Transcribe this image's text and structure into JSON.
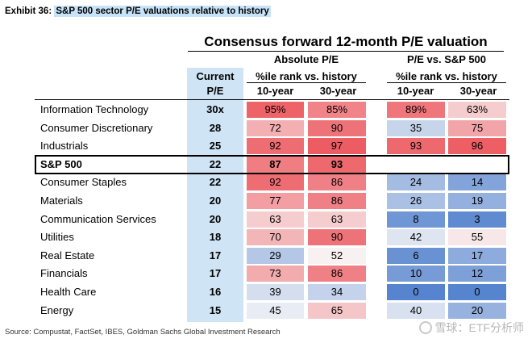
{
  "exhibit": {
    "label": "Exhibit 36:",
    "title": "S&P 500 sector P/E valuations relative to history"
  },
  "header": {
    "main": "Consensus forward 12-month P/E valuation",
    "absolute": "Absolute P/E",
    "relative": "P/E vs. S&P 500",
    "current_line1": "Current",
    "current_line2": "P/E",
    "rank_abs": "%ile rank vs. history",
    "rank_rel": "%ile rank vs. history",
    "y10_abs": "10-year",
    "y30_abs": "30-year",
    "y10_rel": "10-year",
    "y30_rel": "30-year"
  },
  "rows": [
    {
      "sector": "Information Technology",
      "pe": "30x",
      "abs10": "95%",
      "abs30": "85%",
      "rel10": "89%",
      "rel30": "63%"
    },
    {
      "sector": "Consumer Discretionary",
      "pe": "28",
      "abs10": "72",
      "abs30": "90",
      "rel10": "35",
      "rel30": "75"
    },
    {
      "sector": "Industrials",
      "pe": "25",
      "abs10": "92",
      "abs30": "97",
      "rel10": "93",
      "rel30": "96"
    },
    {
      "sector": "S&P 500",
      "pe": "22",
      "abs10": "87",
      "abs30": "93",
      "rel10": "",
      "rel30": "",
      "highlight": true
    },
    {
      "sector": "Consumer Staples",
      "pe": "22",
      "abs10": "92",
      "abs30": "86",
      "rel10": "24",
      "rel30": "14"
    },
    {
      "sector": "Materials",
      "pe": "20",
      "abs10": "77",
      "abs30": "86",
      "rel10": "26",
      "rel30": "19"
    },
    {
      "sector": "Communication Services",
      "pe": "20",
      "abs10": "63",
      "abs30": "63",
      "rel10": "8",
      "rel30": "3"
    },
    {
      "sector": "Utilities",
      "pe": "18",
      "abs10": "70",
      "abs30": "90",
      "rel10": "42",
      "rel30": "55"
    },
    {
      "sector": "Real Estate",
      "pe": "17",
      "abs10": "29",
      "abs30": "52",
      "rel10": "6",
      "rel30": "17"
    },
    {
      "sector": "Financials",
      "pe": "17",
      "abs10": "73",
      "abs30": "86",
      "rel10": "10",
      "rel30": "12"
    },
    {
      "sector": "Health Care",
      "pe": "16",
      "abs10": "39",
      "abs30": "34",
      "rel10": "0",
      "rel30": "0"
    },
    {
      "sector": "Energy",
      "pe": "15",
      "abs10": "45",
      "abs30": "65",
      "rel10": "40",
      "rel30": "20"
    }
  ],
  "source": "Source: Compustat, FactSet, IBES, Goldman Sachs Global Investment Research",
  "watermark": "雪球：ETF分析师"
}
